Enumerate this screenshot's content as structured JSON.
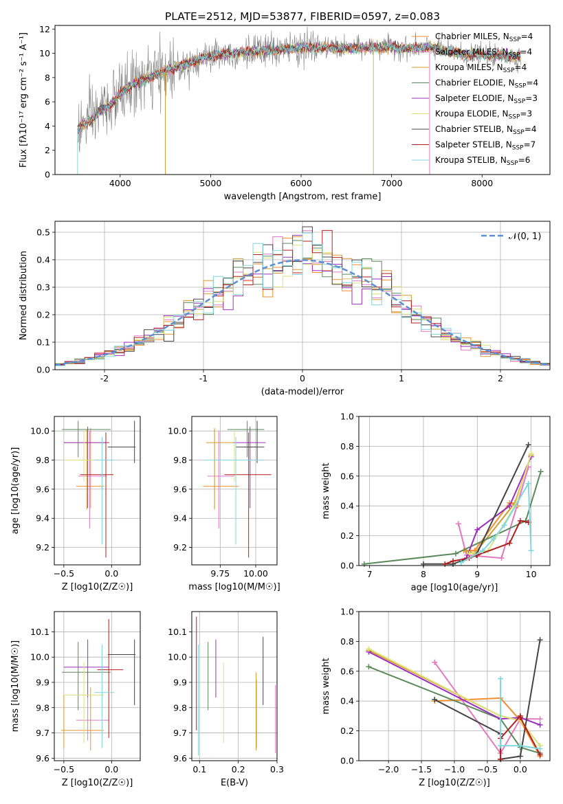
{
  "figure_title": "PLATE=2512, MJD=53877, FIBERID=0597, z=0.083",
  "colors": {
    "chabrier_miles": "#f28e2b",
    "salpeter_miles": "#e377c2",
    "kroupa_miles": "#d39b2c",
    "chabrier_elodie": "#5a8a5a",
    "salpeter_elodie": "#9a2fbf",
    "kroupa_elodie": "#dde37a",
    "chabrier_stelib": "#444444",
    "salpeter_stelib": "#b21e1e",
    "kroupa_stelib": "#7fd6dc",
    "normal_curve": "#5b8fd6",
    "data_spectrum": "#808080"
  },
  "chart_data": [
    {
      "id": "spectrum",
      "type": "line",
      "title": "PLATE=2512, MJD=53877, FIBERID=0597, z=0.083",
      "xlabel": "wavelength [Angstrom, rest frame]",
      "ylabel": "Flux [fλ10⁻¹⁷ erg cm⁻² s⁻¹ A⁻¹]",
      "xlim": [
        3280,
        8750
      ],
      "ylim": [
        0,
        12.3
      ],
      "xticks": [
        4000,
        5000,
        6000,
        7000,
        8000
      ],
      "yticks": [
        0,
        2,
        4,
        6,
        8,
        10,
        12
      ],
      "grid": false,
      "legend_position": "top-right",
      "data_anchor_points": {
        "wavelength": [
          3530,
          3600,
          3700,
          3800,
          3900,
          4000,
          4100,
          4200,
          4400,
          4600,
          4800,
          5000,
          5200,
          5400,
          5600,
          5800,
          6000,
          6200,
          6400,
          6600,
          6800,
          7000,
          7200,
          7400,
          7600,
          7800,
          8000,
          8200,
          8400
        ],
        "flux": [
          3.6,
          4.2,
          4.6,
          5.4,
          5.8,
          6.6,
          7.3,
          7.6,
          8.2,
          8.8,
          9.3,
          9.8,
          10.0,
          10.1,
          10.2,
          10.3,
          10.5,
          10.5,
          10.4,
          10.4,
          10.5,
          10.5,
          10.4,
          10.5,
          10.2,
          9.9,
          9.9,
          9.8,
          9.7
        ]
      },
      "series": [
        {
          "name": "Chabrier MILES, N_SSP=4",
          "legend_label": "Chabrier MILES, N",
          "ssp": "=4"
        },
        {
          "name": "Salpeter MILES, N_SSP=4",
          "legend_label": "Salpeter MILES, N",
          "ssp": "=4"
        },
        {
          "name": "Kroupa MILES, N_SSP=4",
          "legend_label": "Kroupa MILES, N",
          "ssp": "=4"
        },
        {
          "name": "Chabrier ELODIE, N_SSP=4",
          "legend_label": "Chabrier ELODIE, N",
          "ssp": "=4"
        },
        {
          "name": "Salpeter ELODIE, N_SSP=3",
          "legend_label": "Salpeter ELODIE, N",
          "ssp": "=3"
        },
        {
          "name": "Kroupa ELODIE, N_SSP=3",
          "legend_label": "Kroupa ELODIE, N",
          "ssp": "=3"
        },
        {
          "name": "Chabrier STELIB, N_SSP=4",
          "legend_label": "Chabrier STELIB, N",
          "ssp": "=4"
        },
        {
          "name": "Salpeter STELIB, N_SSP=7",
          "legend_label": "Salpeter STELIB, N",
          "ssp": "=7"
        },
        {
          "name": "Kroupa STELIB, N_SSP=6",
          "legend_label": "Kroupa STELIB, N",
          "ssp": "=6"
        }
      ]
    },
    {
      "id": "residuals",
      "type": "bar",
      "xlabel": "(data-model)/error",
      "ylabel": "Normed distribution",
      "xlim": [
        -2.5,
        2.5
      ],
      "ylim": [
        0,
        0.54
      ],
      "xticks": [
        -2,
        -1,
        0,
        1,
        2
      ],
      "yticks": [
        0.0,
        0.1,
        0.2,
        0.3,
        0.4,
        0.5
      ],
      "grid": true,
      "bin_width": 0.1,
      "legend_position": "top-right",
      "legend": "𝒩(0, 1)",
      "normal": {
        "mean": 0,
        "sigma": 1
      }
    },
    {
      "id": "age-vs-z",
      "type": "scatter",
      "xlabel": "Z [log10(Z/Z☉)]",
      "ylabel": "age  [log10(age/yr)]",
      "xlim": [
        -0.6,
        0.3
      ],
      "ylim": [
        9.08,
        10.1
      ],
      "xticks": [
        -0.5,
        0.0
      ],
      "xtick_labels": [
        "−0.5",
        "0.0"
      ],
      "yticks": [
        9.2,
        9.4,
        9.6,
        9.8,
        10.0
      ],
      "grid": true,
      "points": [
        {
          "s": 0,
          "x": -0.22,
          "y": 9.62,
          "ex": [
            -0.37,
            -0.08
          ],
          "ey": [
            9.47,
            10.02
          ]
        },
        {
          "s": 1,
          "x": -0.23,
          "y": 9.69,
          "ex": [
            -0.35,
            -0.05
          ],
          "ey": [
            9.33,
            10.0
          ]
        },
        {
          "s": 2,
          "x": -0.26,
          "y": 9.92,
          "ex": [
            -0.5,
            -0.02
          ],
          "ey": [
            9.46,
            10.01
          ]
        },
        {
          "s": 3,
          "x": -0.35,
          "y": 10.01,
          "ex": [
            -0.52,
            -0.01
          ],
          "ey": [
            9.82,
            10.07
          ]
        },
        {
          "s": 4,
          "x": -0.25,
          "y": 9.92,
          "ex": [
            -0.5,
            -0.03
          ],
          "ey": [
            9.47,
            10.03
          ]
        },
        {
          "s": 5,
          "x": -0.29,
          "y": 9.8,
          "ex": [
            -0.5,
            -0.08
          ],
          "ey": [
            9.65,
            10.0
          ]
        },
        {
          "s": 6,
          "x": 0.24,
          "y": 9.89,
          "ex": [
            -0.04,
            0.25
          ],
          "ey": [
            9.78,
            10.07
          ]
        },
        {
          "s": 7,
          "x": -0.06,
          "y": 9.7,
          "ex": [
            -0.33,
            0.02
          ],
          "ey": [
            9.13,
            9.99
          ]
        },
        {
          "s": 8,
          "x": -0.1,
          "y": 9.8,
          "ex": [
            -0.18,
            0.03
          ],
          "ey": [
            9.22,
            9.96
          ]
        }
      ]
    },
    {
      "id": "age-vs-mass",
      "type": "scatter",
      "xlabel": "mass [log10(M/M☉)]",
      "ylabel": "",
      "xlim": [
        9.55,
        10.15
      ],
      "ylim": [
        9.08,
        10.1
      ],
      "xticks": [
        9.75,
        10.0
      ],
      "xtick_labels": [
        "9.75",
        "10.00"
      ],
      "yticks": [
        9.2,
        9.4,
        9.6,
        9.8,
        10.0
      ],
      "grid": true,
      "points": [
        {
          "s": 0,
          "x": 9.71,
          "y": 9.62,
          "ex": [
            9.63,
            9.88
          ],
          "ey": [
            9.47,
            10.02
          ]
        },
        {
          "s": 1,
          "x": 9.74,
          "y": 9.69,
          "ex": [
            9.66,
            9.85
          ],
          "ey": [
            9.33,
            10.0
          ]
        },
        {
          "s": 2,
          "x": 9.71,
          "y": 9.92,
          "ex": [
            9.65,
            9.84
          ],
          "ey": [
            9.46,
            10.01
          ]
        },
        {
          "s": 3,
          "x": 9.94,
          "y": 10.01,
          "ex": [
            9.8,
            10.06
          ],
          "ey": [
            9.82,
            10.07
          ]
        },
        {
          "s": 4,
          "x": 9.96,
          "y": 9.92,
          "ex": [
            9.84,
            10.07
          ],
          "ey": [
            9.47,
            10.03
          ]
        },
        {
          "s": 5,
          "x": 9.85,
          "y": 9.8,
          "ex": [
            9.7,
            9.98
          ],
          "ey": [
            9.65,
            10.0
          ]
        },
        {
          "s": 6,
          "x": 10.01,
          "y": 9.89,
          "ex": [
            9.86,
            10.06
          ],
          "ey": [
            9.78,
            10.07
          ]
        },
        {
          "s": 7,
          "x": 9.95,
          "y": 9.7,
          "ex": [
            9.78,
            10.11
          ],
          "ey": [
            9.13,
            9.99
          ]
        },
        {
          "s": 8,
          "x": 9.86,
          "y": 9.8,
          "ex": [
            9.64,
            10.05
          ],
          "ey": [
            9.22,
            9.96
          ]
        }
      ]
    },
    {
      "id": "weight-vs-age",
      "type": "line",
      "xlabel": "age  [log10(age/yr)]",
      "ylabel": "mass weight",
      "xlim": [
        6.8,
        10.35
      ],
      "ylim": [
        0,
        1.0
      ],
      "xticks": [
        7,
        8,
        9,
        10
      ],
      "yticks": [
        0.0,
        0.2,
        0.4,
        0.6,
        0.8,
        1.0
      ],
      "grid": true,
      "series": [
        {
          "s": 0,
          "x": [
            8.75,
            8.95,
            9.6,
            9.75
          ],
          "y": [
            0.1,
            0.1,
            0.42,
            0.4
          ]
        },
        {
          "s": 1,
          "x": [
            8.65,
            8.8,
            9.45,
            9.95
          ],
          "y": [
            0.28,
            0.07,
            0.05,
            0.66
          ]
        },
        {
          "s": 2,
          "x": [
            8.8,
            8.95,
            9.7,
            10.0
          ],
          "y": [
            0.1,
            0.08,
            0.42,
            0.74
          ]
        },
        {
          "s": 3,
          "x": [
            6.9,
            8.6,
            9.9,
            10.18
          ],
          "y": [
            0.01,
            0.08,
            0.3,
            0.63
          ]
        },
        {
          "s": 4,
          "x": [
            8.8,
            9.0,
            9.6,
            10.0
          ],
          "y": [
            0.05,
            0.24,
            0.4,
            0.73
          ]
        },
        {
          "s": 5,
          "x": [
            8.85,
            9.2,
            9.7,
            10.0
          ],
          "y": [
            0.08,
            0.1,
            0.4,
            0.75
          ]
        },
        {
          "s": 6,
          "x": [
            8.0,
            8.55,
            8.98,
            9.95
          ],
          "y": [
            0.01,
            0.01,
            0.07,
            0.81
          ]
        },
        {
          "s": 7,
          "x": [
            8.4,
            8.55,
            8.85,
            9.0,
            9.6,
            9.8,
            9.95
          ],
          "y": [
            0.01,
            0.03,
            0.05,
            0.07,
            0.15,
            0.3,
            0.29
          ]
        },
        {
          "s": 8,
          "x": [
            8.7,
            9.1,
            9.3,
            9.5,
            9.95,
            10.0
          ],
          "y": [
            0.02,
            0.1,
            0.18,
            0.27,
            0.55,
            0.1
          ]
        }
      ]
    },
    {
      "id": "mass-vs-z",
      "type": "scatter",
      "xlabel": "Z [log10(Z/Z☉)]",
      "ylabel": "mass [log10(M/M☉)]",
      "xlim": [
        -0.6,
        0.3
      ],
      "ylim": [
        9.59,
        10.18
      ],
      "xticks": [
        -0.5,
        0.0
      ],
      "xtick_labels": [
        "−0.5",
        "0.0"
      ],
      "yticks": [
        9.6,
        9.7,
        9.8,
        9.9,
        10.0,
        10.1
      ],
      "grid": true,
      "points": [
        {
          "s": 0,
          "x": -0.22,
          "y": 9.71,
          "ex": [
            -0.36,
            -0.08
          ],
          "ey": [
            9.63,
            9.88
          ]
        },
        {
          "s": 1,
          "x": -0.25,
          "y": 9.75,
          "ex": [
            -0.37,
            -0.03
          ],
          "ey": [
            9.67,
            9.84
          ]
        },
        {
          "s": 2,
          "x": -0.5,
          "y": 9.71,
          "ex": [
            -0.53,
            -0.36
          ],
          "ey": [
            9.64,
            9.85
          ]
        },
        {
          "s": 3,
          "x": -0.35,
          "y": 9.94,
          "ex": [
            -0.52,
            -0.01
          ],
          "ey": [
            9.79,
            10.06
          ]
        },
        {
          "s": 4,
          "x": -0.25,
          "y": 9.96,
          "ex": [
            -0.5,
            -0.03
          ],
          "ey": [
            9.84,
            10.07
          ]
        },
        {
          "s": 5,
          "x": -0.29,
          "y": 9.85,
          "ex": [
            -0.5,
            -0.08
          ],
          "ey": [
            9.66,
            9.98
          ]
        },
        {
          "s": 6,
          "x": 0.24,
          "y": 10.01,
          "ex": [
            -0.04,
            0.25
          ],
          "ey": [
            9.81,
            10.07
          ]
        },
        {
          "s": 7,
          "x": -0.03,
          "y": 9.95,
          "ex": [
            -0.15,
            0.12
          ],
          "ey": [
            9.68,
            10.15
          ]
        },
        {
          "s": 8,
          "x": -0.1,
          "y": 9.86,
          "ex": [
            -0.18,
            0.03
          ],
          "ey": [
            9.64,
            10.05
          ]
        }
      ]
    },
    {
      "id": "mass-vs-ebv",
      "type": "scatter",
      "xlabel": "E(B-V)",
      "ylabel": "",
      "xlim": [
        0.08,
        0.3
      ],
      "ylim": [
        9.59,
        10.18
      ],
      "xticks": [
        0.1,
        0.2,
        0.3
      ],
      "xtick_labels": [
        "0.1",
        "0.2",
        "0.3"
      ],
      "yticks": [
        9.6,
        9.7,
        9.8,
        9.9,
        10.0,
        10.1
      ],
      "grid": true,
      "points": [
        {
          "s": 0,
          "x": 0.247,
          "y": 9.8,
          "ey": [
            9.64,
            9.91
          ]
        },
        {
          "s": 1,
          "x": 0.296,
          "y": 9.75,
          "ey": [
            9.62,
            9.89
          ]
        },
        {
          "s": 2,
          "x": 0.246,
          "y": 9.8,
          "ey": [
            9.63,
            9.94
          ]
        },
        {
          "s": 3,
          "x": 0.122,
          "y": 9.94,
          "ey": [
            9.79,
            10.06
          ]
        },
        {
          "s": 4,
          "x": 0.142,
          "y": 9.96,
          "ey": [
            9.84,
            10.07
          ]
        },
        {
          "s": 5,
          "x": 0.162,
          "y": 9.85,
          "ey": [
            9.66,
            9.98
          ]
        },
        {
          "s": 6,
          "x": 0.264,
          "y": 9.95,
          "ey": [
            9.81,
            10.08
          ]
        },
        {
          "s": 7,
          "x": 0.092,
          "y": 9.95,
          "ey": [
            9.71,
            10.16
          ]
        },
        {
          "s": 8,
          "x": 0.097,
          "y": 9.8,
          "ey": [
            9.61,
            10.05
          ]
        }
      ]
    },
    {
      "id": "weight-vs-z",
      "type": "line",
      "xlabel": "Z [log10(Z/Z☉)]",
      "ylabel": "mass weight",
      "xlim": [
        -2.45,
        0.45
      ],
      "ylim": [
        0,
        1.0
      ],
      "xticks": [
        -2.0,
        -1.5,
        -1.0,
        -0.5,
        0.0
      ],
      "xtick_labels": [
        "−2.0",
        "−1.5",
        "−1.0",
        "−0.5",
        "0.0"
      ],
      "yticks": [
        0.0,
        0.2,
        0.4,
        0.6,
        0.8,
        1.0
      ],
      "grid": true,
      "series": [
        {
          "s": 0,
          "x": [
            -1.3,
            -0.3,
            0.0,
            0.3
          ],
          "y": [
            0.4,
            0.42,
            0.27,
            0.03
          ]
        },
        {
          "s": 1,
          "x": [
            -1.3,
            -0.3,
            0.0,
            0.3
          ],
          "y": [
            0.66,
            0.05,
            0.28,
            0.28
          ]
        },
        {
          "s": 2,
          "x": [
            -2.3,
            -0.3,
            0.0,
            0.3
          ],
          "y": [
            0.74,
            0.3,
            0.27,
            0.1
          ]
        },
        {
          "s": 3,
          "x": [
            -2.3,
            -0.3,
            0.0,
            0.3
          ],
          "y": [
            0.63,
            0.28,
            0.09,
            0.05
          ]
        },
        {
          "s": 4,
          "x": [
            -2.3,
            -0.3,
            0.0,
            0.3
          ],
          "y": [
            0.73,
            0.28,
            0.29,
            0.24
          ]
        },
        {
          "s": 5,
          "x": [
            -2.3,
            -0.3,
            0.0,
            0.3
          ],
          "y": [
            0.75,
            0.3,
            0.27,
            0.1
          ]
        },
        {
          "s": 6,
          "x": [
            -1.3,
            -0.3,
            -0.3,
            0.0,
            0.3
          ],
          "y": [
            0.41,
            0.18,
            0.01,
            0.03,
            0.81
          ]
        },
        {
          "s": 7,
          "x": [
            -0.3,
            -0.3,
            0.0,
            0.0,
            0.3
          ],
          "y": [
            0.01,
            0.15,
            0.3,
            0.29,
            0.04
          ]
        },
        {
          "s": 8,
          "x": [
            -0.3,
            -0.3,
            0.0,
            0.3
          ],
          "y": [
            0.55,
            0.1,
            0.1,
            0.08
          ]
        }
      ]
    }
  ]
}
